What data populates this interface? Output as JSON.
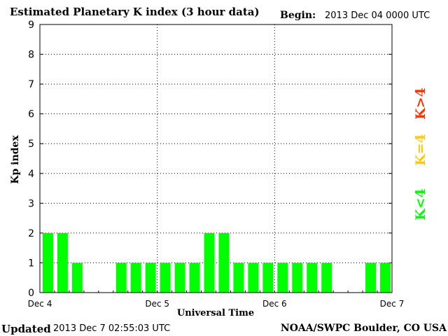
{
  "header": {
    "title": "Estimated Planetary K index (3 hour data)",
    "begin_label": "Begin:",
    "begin_value": "2013 Dec 04 0000 UTC"
  },
  "footer": {
    "updated_label": "Updated",
    "updated_value": "2013 Dec  7 02:55:03 UTC",
    "source": "NOAA/SWPC Boulder, CO USA"
  },
  "legend": {
    "items": [
      {
        "label": "K<4",
        "color": "#00ff00"
      },
      {
        "label": "K=4",
        "color": "#ffcc00"
      },
      {
        "label": "K>4",
        "color": "#ff3300"
      }
    ]
  },
  "chart_data": {
    "type": "bar",
    "xlabel": "Universal Time",
    "ylabel": "Kp index",
    "ylim": [
      0,
      9
    ],
    "yticks": [
      0,
      1,
      2,
      3,
      4,
      5,
      6,
      7,
      8,
      9
    ],
    "x_tick_labels": [
      "Dec 4",
      "Dec 5",
      "Dec 6",
      "Dec 7"
    ],
    "grid": "dotted",
    "interval_hours": 3,
    "values": [
      2,
      2,
      1,
      0,
      0,
      1,
      1,
      1,
      1,
      1,
      1,
      2,
      2,
      1,
      1,
      1,
      1,
      1,
      1,
      1,
      0,
      0,
      1,
      1
    ],
    "bar_color": "#00ff00"
  }
}
